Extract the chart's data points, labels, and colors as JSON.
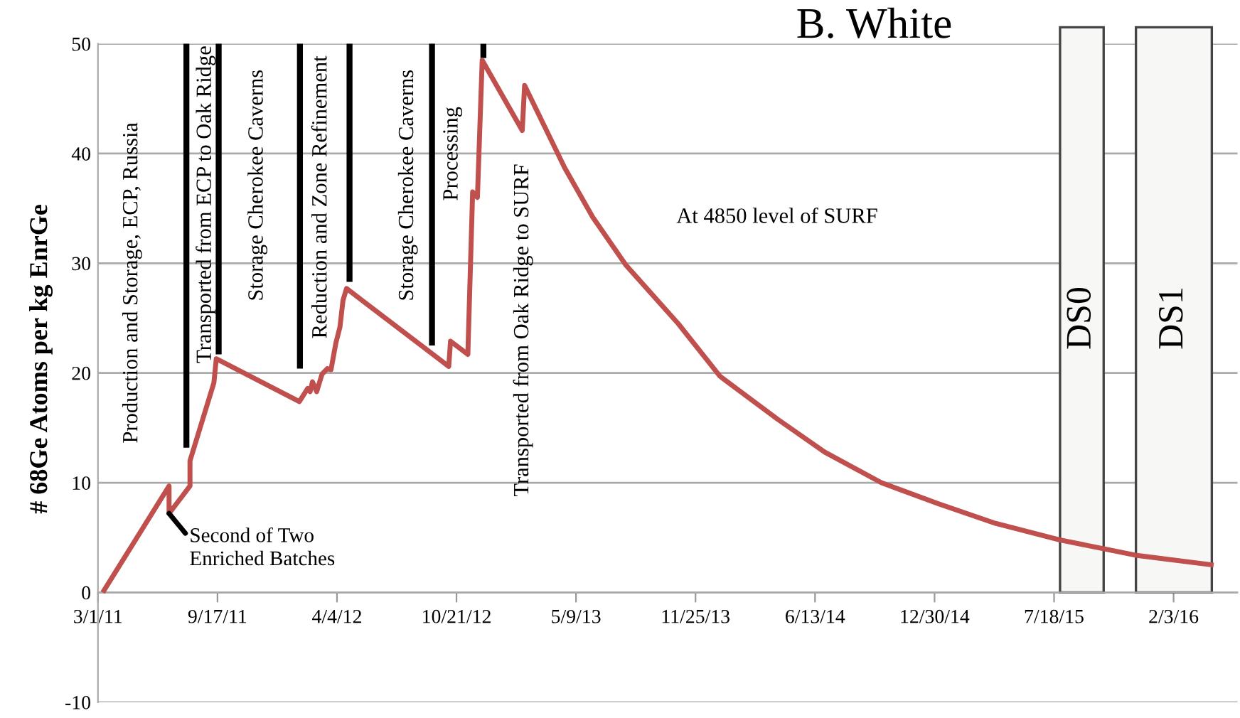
{
  "chart_data": {
    "type": "line",
    "title": "B. White",
    "ylabel": "# 68Ge Atoms per kg EnrGe",
    "xlim": [
      "2011-03-01",
      "2016-05-20"
    ],
    "ylim": [
      -10,
      50
    ],
    "yticks": [
      -10,
      0,
      10,
      20,
      30,
      40,
      50
    ],
    "xticks": [
      {
        "value": "2011-03-01",
        "label": "3/1/11"
      },
      {
        "value": "2011-09-17",
        "label": "9/17/11"
      },
      {
        "value": "2012-04-04",
        "label": "4/4/12"
      },
      {
        "value": "2012-10-21",
        "label": "10/21/12"
      },
      {
        "value": "2013-05-09",
        "label": "5/9/13"
      },
      {
        "value": "2013-11-25",
        "label": "11/25/13"
      },
      {
        "value": "2014-06-13",
        "label": "6/13/14"
      },
      {
        "value": "2014-12-30",
        "label": "12/30/14"
      },
      {
        "value": "2015-07-18",
        "label": "7/18/15"
      },
      {
        "value": "2016-02-03",
        "label": "2/3/16"
      }
    ],
    "grid": "y",
    "marker": "none",
    "line_style": "solid",
    "series": [
      {
        "color": "#c0504d",
        "x": [
          "2011-03-09",
          "2011-06-28",
          "2011-06-28",
          "2011-08-02",
          "2011-08-02",
          "2011-09-11",
          "2011-09-15",
          "2012-02-01",
          "2012-02-15",
          "2012-02-19",
          "2012-02-23",
          "2012-03-01",
          "2012-03-10",
          "2012-03-19",
          "2012-03-25",
          "2012-04-02",
          "2012-04-09",
          "2012-04-14",
          "2012-04-20",
          "2012-10-08",
          "2012-10-11",
          "2012-11-09",
          "2012-11-17",
          "2012-11-25",
          "2012-12-03",
          "2013-02-08",
          "2013-02-12",
          "2013-04-20",
          "2013-06-06",
          "2013-08-01",
          "2013-10-27",
          "2014-01-05",
          "2014-04-11",
          "2014-06-29",
          "2014-10-02",
          "2015-01-05",
          "2015-04-11",
          "2015-07-27",
          "2015-12-01",
          "2016-04-10"
        ],
        "values": [
          0,
          9.7,
          7.2,
          9.7,
          12.0,
          19.1,
          21.3,
          17.4,
          18.6,
          18.3,
          19.2,
          18.3,
          19.9,
          20.4,
          20.3,
          22.7,
          24.2,
          26.6,
          27.7,
          20.6,
          22.9,
          21.7,
          36.5,
          36.0,
          48.5,
          42.1,
          46.2,
          38.7,
          34.2,
          29.8,
          24.5,
          19.7,
          15.8,
          12.8,
          10.0,
          8.1,
          6.3,
          4.8,
          3.4,
          2.5
        ]
      },
      {
        "color": "#000000",
        "x": [
          "2011-07-27",
          "2011-07-27"
        ],
        "values": [
          13.2,
          50
        ]
      },
      {
        "color": "#000000",
        "x": [
          "2011-09-19",
          "2011-09-19"
        ],
        "values": [
          21.7,
          50
        ]
      },
      {
        "color": "#000000",
        "x": [
          "2012-02-02",
          "2012-02-02"
        ],
        "values": [
          20.4,
          50
        ]
      },
      {
        "color": "#000000",
        "x": [
          "2012-04-25",
          "2012-04-25"
        ],
        "values": [
          28.3,
          50
        ]
      },
      {
        "color": "#000000",
        "x": [
          "2012-09-10",
          "2012-09-10"
        ],
        "values": [
          22.5,
          50
        ]
      },
      {
        "color": "#000000",
        "x": [
          "2012-12-05",
          "2012-12-05"
        ],
        "values": [
          48.7,
          50
        ]
      }
    ],
    "bands": [
      {
        "axis": "x",
        "from": "2015-07-28",
        "to": "2015-10-09",
        "label": "DS0",
        "color": "#f7f7f5"
      },
      {
        "axis": "x",
        "from": "2015-12-02",
        "to": "2016-04-07",
        "label": "DS1",
        "color": "#f7f7f5"
      }
    ],
    "annotations": [
      "Production and Storage, ECP, Russia",
      "Transported from ECP to Oak Ridge",
      "Storage Cherokee Caverns",
      "Reduction and Zone Refinement",
      "Storage Cherokee Caverns",
      "Processing",
      "Transported from Oak Ridge to SURF",
      "At 4850 level of SURF",
      {
        "text": "Second of Two\nEnriched Batches",
        "x": "2011-06-28",
        "y": 7.2
      }
    ]
  }
}
